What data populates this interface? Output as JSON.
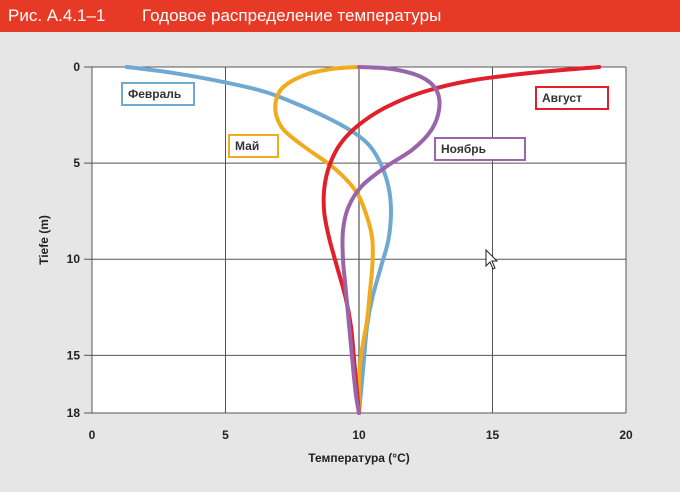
{
  "header": {
    "figure_number": "Рис. А.4.1–1",
    "title": "Годовое распределение температуры",
    "background": "#e63a26"
  },
  "chart_data": {
    "type": "line",
    "title": "Годовое распределение температуры",
    "xlabel": "Температура (°C)",
    "ylabel": "Tiefe (m)",
    "xlim": [
      0,
      20
    ],
    "ylim": [
      0,
      18
    ],
    "y_inverted": true,
    "x_ticks": [
      "0",
      "5",
      "10",
      "15",
      "20"
    ],
    "y_ticks": [
      "0",
      "5",
      "10",
      "15",
      "18"
    ],
    "grid": true,
    "series": [
      {
        "name": "Февраль",
        "color": "#6fa8d0",
        "points": [
          [
            1.3,
            0
          ],
          [
            3.0,
            0.3
          ],
          [
            5.0,
            0.8
          ],
          [
            6.5,
            1.3
          ],
          [
            7.8,
            2.0
          ],
          [
            8.9,
            2.7
          ],
          [
            9.8,
            3.4
          ],
          [
            10.4,
            4.1
          ],
          [
            10.8,
            5.0
          ],
          [
            11.1,
            6.2
          ],
          [
            11.2,
            7.5
          ],
          [
            11.1,
            9.0
          ],
          [
            10.8,
            10.5
          ],
          [
            10.5,
            12.0
          ],
          [
            10.3,
            13.5
          ],
          [
            10.2,
            15.0
          ],
          [
            10.1,
            16.5
          ],
          [
            10.0,
            18.0
          ]
        ]
      },
      {
        "name": "Май",
        "color": "#f0ab1e",
        "points": [
          [
            10.0,
            0
          ],
          [
            9.0,
            0.1
          ],
          [
            8.0,
            0.4
          ],
          [
            7.2,
            1.0
          ],
          [
            6.9,
            1.7
          ],
          [
            6.9,
            2.5
          ],
          [
            7.2,
            3.3
          ],
          [
            8.0,
            4.2
          ],
          [
            9.1,
            5.3
          ],
          [
            9.9,
            6.5
          ],
          [
            10.3,
            7.8
          ],
          [
            10.5,
            9.0
          ],
          [
            10.5,
            10.3
          ],
          [
            10.4,
            11.8
          ],
          [
            10.3,
            13.2
          ],
          [
            10.1,
            14.8
          ],
          [
            10.0,
            16.3
          ],
          [
            10.0,
            18.0
          ]
        ]
      },
      {
        "name": "Август",
        "color": "#e2202c",
        "points": [
          [
            19.0,
            0
          ],
          [
            16.5,
            0.3
          ],
          [
            14.2,
            0.7
          ],
          [
            12.4,
            1.3
          ],
          [
            11.0,
            2.1
          ],
          [
            10.0,
            3.0
          ],
          [
            9.3,
            4.0
          ],
          [
            8.9,
            5.1
          ],
          [
            8.7,
            6.3
          ],
          [
            8.7,
            7.6
          ],
          [
            8.9,
            9.0
          ],
          [
            9.2,
            10.5
          ],
          [
            9.5,
            12.0
          ],
          [
            9.7,
            13.5
          ],
          [
            9.8,
            15.0
          ],
          [
            9.9,
            16.5
          ],
          [
            10.0,
            18.0
          ]
        ]
      },
      {
        "name": "Ноябрь",
        "color": "#9a65a8",
        "points": [
          [
            10.0,
            0
          ],
          [
            11.2,
            0.1
          ],
          [
            12.3,
            0.5
          ],
          [
            12.9,
            1.2
          ],
          [
            13.0,
            2.2
          ],
          [
            12.7,
            3.3
          ],
          [
            12.0,
            4.3
          ],
          [
            11.0,
            5.2
          ],
          [
            10.1,
            6.2
          ],
          [
            9.6,
            7.3
          ],
          [
            9.4,
            8.5
          ],
          [
            9.4,
            10.0
          ],
          [
            9.5,
            11.5
          ],
          [
            9.6,
            13.0
          ],
          [
            9.7,
            14.5
          ],
          [
            9.8,
            16.0
          ],
          [
            9.9,
            17.2
          ],
          [
            10.0,
            18.0
          ]
        ]
      }
    ],
    "reference_line": {
      "x": 10,
      "color": "#999999"
    }
  }
}
